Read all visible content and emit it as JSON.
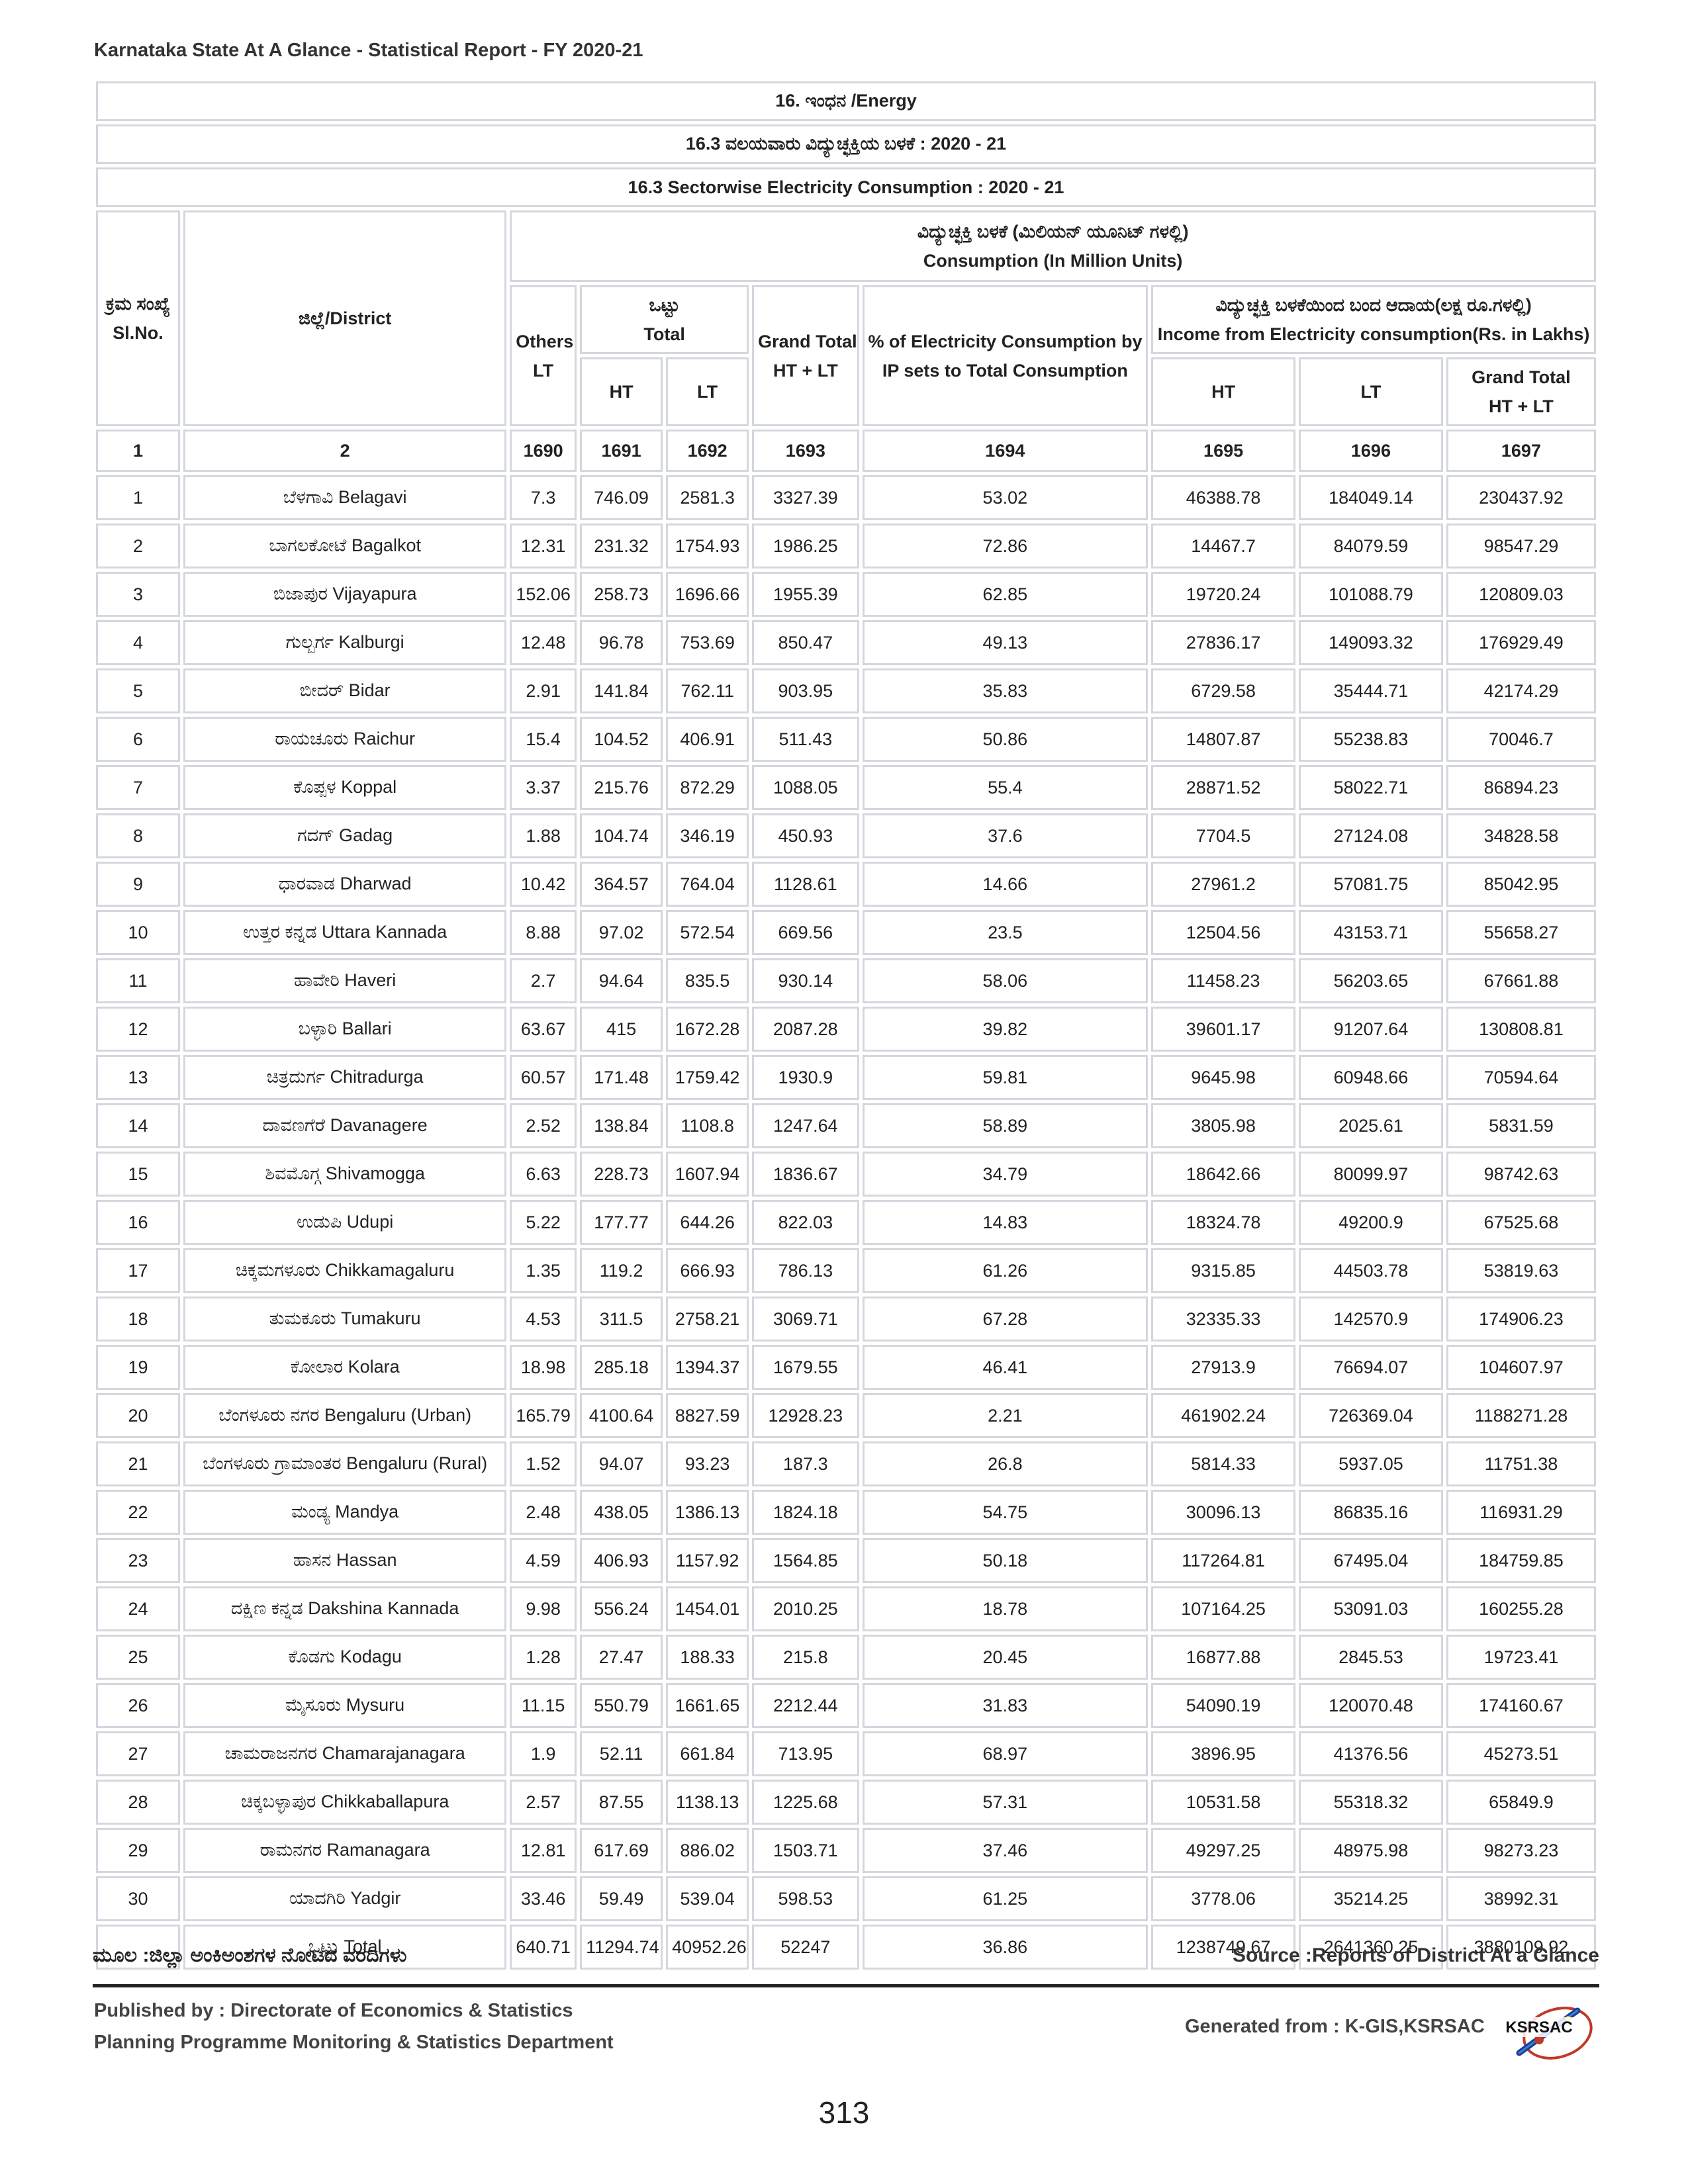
{
  "report_title": "Karnataka State At A Glance - Statistical Report - FY 2020-21",
  "banners": {
    "chapter": "16. ಇಂಧನ  /Energy",
    "title_kn": "16.3 ವಲಯವಾರು ವಿದ್ಯುಚ್ಛಕ್ತಿಯ ಬಳಕೆ : 2020 - 21",
    "title_en": "16.3 Sectorwise Electricity Consumption : 2020 - 21"
  },
  "headers": {
    "slno_kn": "ಕ್ರಮ ಸಂಖ್ಯೆ",
    "slno_en": "Sl.No.",
    "district": "ಜಿಲ್ಲೆ/District",
    "consumption_kn": "ವಿದ್ಯುಚ್ಛಕ್ತಿ ಬಳಕೆ (ಮಿಲಿಯನ್ ಯೂನಿಟ್ ಗಳಲ್ಲಿ)",
    "consumption_en": "Consumption (In Million Units)",
    "others": "Others",
    "others_lt": "LT",
    "total_kn": "ಒಟ್ಟು",
    "total_en": "Total",
    "ht": "HT",
    "lt": "LT",
    "grand_total": "Grand Total",
    "ht_lt": "HT + LT",
    "pct_ip_1": "% of Electricity Consumption by",
    "pct_ip_2": "IP sets to Total Consumption",
    "income_kn": "ವಿದ್ಯುಚ್ಛಕ್ತಿ ಬಳಕೆಯಿಂದ ಬಂದ ಆದಾಯ(ಲಕ್ಷ ರೂ.ಗಳಲ್ಲಿ)",
    "income_en": "Income from Electricity consumption(Rs. in Lakhs)",
    "income_ht": "HT",
    "income_lt": "LT",
    "income_grand": "Grand Total",
    "income_ht_lt": "HT + LT"
  },
  "column_numbers": [
    "1",
    "2",
    "1690",
    "1691",
    "1692",
    "1693",
    "1694",
    "1695",
    "1696",
    "1697"
  ],
  "rows": [
    [
      "1",
      "ಬೆಳಗಾವಿ Belagavi",
      "7.3",
      "746.09",
      "2581.3",
      "3327.39",
      "53.02",
      "46388.78",
      "184049.14",
      "230437.92"
    ],
    [
      "2",
      "ಬಾಗಲಕೋಟೆ Bagalkot",
      "12.31",
      "231.32",
      "1754.93",
      "1986.25",
      "72.86",
      "14467.7",
      "84079.59",
      "98547.29"
    ],
    [
      "3",
      "ಬಿಜಾಪುರ Vijayapura",
      "152.06",
      "258.73",
      "1696.66",
      "1955.39",
      "62.85",
      "19720.24",
      "101088.79",
      "120809.03"
    ],
    [
      "4",
      "ಗುಲ್ಬರ್ಗ Kalburgi",
      "12.48",
      "96.78",
      "753.69",
      "850.47",
      "49.13",
      "27836.17",
      "149093.32",
      "176929.49"
    ],
    [
      "5",
      "ಬೀದರ್ Bidar",
      "2.91",
      "141.84",
      "762.11",
      "903.95",
      "35.83",
      "6729.58",
      "35444.71",
      "42174.29"
    ],
    [
      "6",
      "ರಾಯಚೂರು Raichur",
      "15.4",
      "104.52",
      "406.91",
      "511.43",
      "50.86",
      "14807.87",
      "55238.83",
      "70046.7"
    ],
    [
      "7",
      "ಕೊಪ್ಪಳ Koppal",
      "3.37",
      "215.76",
      "872.29",
      "1088.05",
      "55.4",
      "28871.52",
      "58022.71",
      "86894.23"
    ],
    [
      "8",
      "ಗದಗ್ Gadag",
      "1.88",
      "104.74",
      "346.19",
      "450.93",
      "37.6",
      "7704.5",
      "27124.08",
      "34828.58"
    ],
    [
      "9",
      "ಧಾರವಾಡ Dharwad",
      "10.42",
      "364.57",
      "764.04",
      "1128.61",
      "14.66",
      "27961.2",
      "57081.75",
      "85042.95"
    ],
    [
      "10",
      "ಉತ್ತರ ಕನ್ನಡ Uttara Kannada",
      "8.88",
      "97.02",
      "572.54",
      "669.56",
      "23.5",
      "12504.56",
      "43153.71",
      "55658.27"
    ],
    [
      "11",
      "ಹಾವೇರಿ Haveri",
      "2.7",
      "94.64",
      "835.5",
      "930.14",
      "58.06",
      "11458.23",
      "56203.65",
      "67661.88"
    ],
    [
      "12",
      "ಬಳ್ಳಾರಿ Ballari",
      "63.67",
      "415",
      "1672.28",
      "2087.28",
      "39.82",
      "39601.17",
      "91207.64",
      "130808.81"
    ],
    [
      "13",
      "ಚಿತ್ರದುರ್ಗ Chitradurga",
      "60.57",
      "171.48",
      "1759.42",
      "1930.9",
      "59.81",
      "9645.98",
      "60948.66",
      "70594.64"
    ],
    [
      "14",
      "ದಾವಣಗೆರೆ Davanagere",
      "2.52",
      "138.84",
      "1108.8",
      "1247.64",
      "58.89",
      "3805.98",
      "2025.61",
      "5831.59"
    ],
    [
      "15",
      "ಶಿವಮೊಗ್ಗ Shivamogga",
      "6.63",
      "228.73",
      "1607.94",
      "1836.67",
      "34.79",
      "18642.66",
      "80099.97",
      "98742.63"
    ],
    [
      "16",
      "ಉಡುಪಿ Udupi",
      "5.22",
      "177.77",
      "644.26",
      "822.03",
      "14.83",
      "18324.78",
      "49200.9",
      "67525.68"
    ],
    [
      "17",
      "ಚಿಕ್ಕಮಗಳೂರು Chikkamagaluru",
      "1.35",
      "119.2",
      "666.93",
      "786.13",
      "61.26",
      "9315.85",
      "44503.78",
      "53819.63"
    ],
    [
      "18",
      "ತುಮಕೂರು Tumakuru",
      "4.53",
      "311.5",
      "2758.21",
      "3069.71",
      "67.28",
      "32335.33",
      "142570.9",
      "174906.23"
    ],
    [
      "19",
      "ಕೋಲಾರ Kolara",
      "18.98",
      "285.18",
      "1394.37",
      "1679.55",
      "46.41",
      "27913.9",
      "76694.07",
      "104607.97"
    ],
    [
      "20",
      "ಬೆಂಗಳೂರು ನಗರ Bengaluru (Urban)",
      "165.79",
      "4100.64",
      "8827.59",
      "12928.23",
      "2.21",
      "461902.24",
      "726369.04",
      "1188271.28"
    ],
    [
      "21",
      "ಬೆಂಗಳೂರು ಗ್ರಾಮಾಂತರ Bengaluru (Rural)",
      "1.52",
      "94.07",
      "93.23",
      "187.3",
      "26.8",
      "5814.33",
      "5937.05",
      "11751.38"
    ],
    [
      "22",
      "ಮಂಡ್ಯ Mandya",
      "2.48",
      "438.05",
      "1386.13",
      "1824.18",
      "54.75",
      "30096.13",
      "86835.16",
      "116931.29"
    ],
    [
      "23",
      "ಹಾಸನ Hassan",
      "4.59",
      "406.93",
      "1157.92",
      "1564.85",
      "50.18",
      "117264.81",
      "67495.04",
      "184759.85"
    ],
    [
      "24",
      "ದಕ್ಷಿಣ ಕನ್ನಡ Dakshina Kannada",
      "9.98",
      "556.24",
      "1454.01",
      "2010.25",
      "18.78",
      "107164.25",
      "53091.03",
      "160255.28"
    ],
    [
      "25",
      "ಕೊಡಗು Kodagu",
      "1.28",
      "27.47",
      "188.33",
      "215.8",
      "20.45",
      "16877.88",
      "2845.53",
      "19723.41"
    ],
    [
      "26",
      "ಮೈಸೂರು Mysuru",
      "11.15",
      "550.79",
      "1661.65",
      "2212.44",
      "31.83",
      "54090.19",
      "120070.48",
      "174160.67"
    ],
    [
      "27",
      "ಚಾಮರಾಜನಗರ Chamarajanagara",
      "1.9",
      "52.11",
      "661.84",
      "713.95",
      "68.97",
      "3896.95",
      "41376.56",
      "45273.51"
    ],
    [
      "28",
      "ಚಿಕ್ಕಬಳ್ಳಾಪುರ Chikkaballapura",
      "2.57",
      "87.55",
      "1138.13",
      "1225.68",
      "57.31",
      "10531.58",
      "55318.32",
      "65849.9"
    ],
    [
      "29",
      "ರಾಮನಗರ Ramanagara",
      "12.81",
      "617.69",
      "886.02",
      "1503.71",
      "37.46",
      "49297.25",
      "48975.98",
      "98273.23"
    ],
    [
      "30",
      "ಯಾದಗಿರಿ Yadgir",
      "33.46",
      "59.49",
      "539.04",
      "598.53",
      "61.25",
      "3778.06",
      "35214.25",
      "38992.31"
    ]
  ],
  "total_row": [
    "",
    "ಒಟ್ಟು Total",
    "640.71",
    "11294.74",
    "40952.26",
    "52247",
    "36.86",
    "1238749.67",
    "2641360.25",
    "3880109.92"
  ],
  "footer": {
    "source_kn": "ಮೂಲ :ಜಿಲ್ಲಾ ಅಂಕಿಅಂಶಗಳ ನೋಟದ ವರದಿಗಳು",
    "source_en": "Source :Reports of District At a Glance",
    "published_by": "Published by : Directorate of Economics & Statistics",
    "department": "Planning Programme Monitoring & Statistics Department",
    "generated_from": "Generated from : K-GIS,KSRSAC",
    "logo_text": "KSRSAC",
    "page_number": "313"
  }
}
